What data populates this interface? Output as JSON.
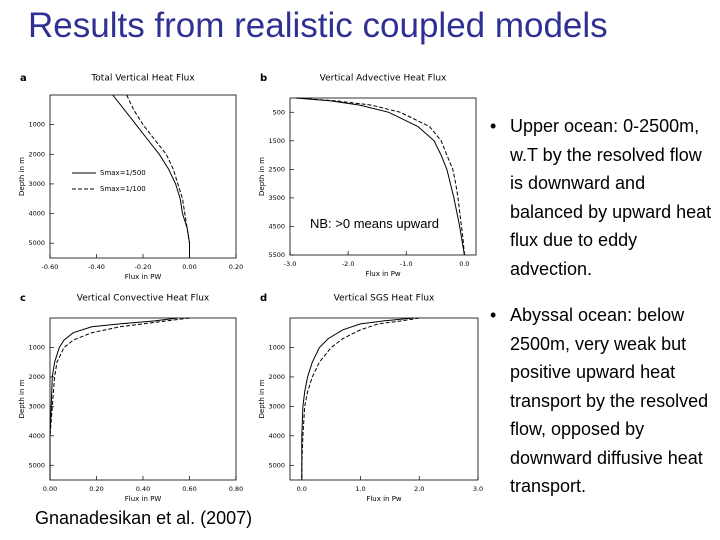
{
  "title": "Results from realistic coupled models",
  "note": "NB: >0 means upward",
  "citation": "Gnanadesikan et al. (2007)",
  "bullets": [
    "Upper ocean: 0-2500m, w.T by the resolved flow is downward and balanced by upward heat flux due to eddy advection.",
    "Abyssal ocean: below 2500m, very weak but positive upward heat transport by the resolved flow, opposed by downward diffusive heat transport."
  ],
  "chart_data": [
    {
      "type": "line",
      "panel": "a",
      "title": "Total Vertical Heat Flux",
      "x_label": "Flux in PW",
      "y_label": "Depth in m",
      "xlim": [
        -0.6,
        0.2
      ],
      "xticks": [
        {
          "value": -0.6,
          "label": "-0.60"
        },
        {
          "value": -0.4,
          "label": "-0.40"
        },
        {
          "value": -0.2,
          "label": "-0.20"
        },
        {
          "value": 0,
          "label": "0.00"
        },
        {
          "value": 0.2,
          "label": "0.20"
        }
      ],
      "ylim": [
        0,
        5500
      ],
      "yticks": [
        1000,
        2000,
        3000,
        4000,
        5000
      ],
      "legend": "left",
      "y": [
        0,
        500,
        1000,
        1500,
        2000,
        2500,
        3000,
        3500,
        4000,
        4500,
        5000,
        5500
      ],
      "series": [
        {
          "name": "Smax=1/500",
          "color": "#000000",
          "dash": false,
          "values": [
            -0.33,
            -0.28,
            -0.23,
            -0.18,
            -0.13,
            -0.09,
            -0.06,
            -0.04,
            -0.03,
            -0.01,
            0,
            0
          ]
        },
        {
          "name": "Smax=1/100",
          "color": "#000000",
          "dash": true,
          "values": [
            -0.27,
            -0.24,
            -0.2,
            -0.15,
            -0.1,
            -0.07,
            -0.05,
            -0.03,
            -0.02,
            -0.01,
            0,
            0
          ]
        }
      ]
    },
    {
      "type": "line",
      "panel": "b",
      "title": "Vertical Advective Heat Flux",
      "x_label": "Flux in Pw",
      "y_label": "Depth in m",
      "xlim": [
        -3.0,
        0.2
      ],
      "xticks": [
        {
          "value": -3,
          "label": "-3.0"
        },
        {
          "value": -2,
          "label": "-2.0"
        },
        {
          "value": -1,
          "label": "-1.0"
        },
        {
          "value": 0,
          "label": "0.0"
        }
      ],
      "ylim": [
        0,
        5500
      ],
      "yticks": [
        500,
        1500,
        2500,
        3500,
        4500,
        5500
      ],
      "y": [
        0,
        100,
        250,
        500,
        1000,
        1500,
        2000,
        2500,
        3000,
        3500,
        4000,
        4500,
        5000,
        5500
      ],
      "series": [
        {
          "color": "#000000",
          "dash": false,
          "values": [
            -2.9,
            -2.3,
            -1.8,
            -1.3,
            -0.8,
            -0.52,
            -0.4,
            -0.3,
            -0.24,
            -0.18,
            -0.13,
            -0.08,
            -0.04,
            0
          ]
        },
        {
          "color": "#000000",
          "dash": true,
          "values": [
            -2.9,
            -2.2,
            -1.6,
            -1.1,
            -0.6,
            -0.4,
            -0.3,
            -0.2,
            -0.15,
            -0.11,
            -0.08,
            -0.05,
            -0.02,
            0
          ]
        }
      ]
    },
    {
      "type": "line",
      "panel": "c",
      "title": "Vertical Convective Heat Flux",
      "x_label": "Flux in PW",
      "y_label": "Depth in m",
      "xlim": [
        0,
        0.8
      ],
      "xticks": [
        {
          "value": 0,
          "label": "0.00"
        },
        {
          "value": 0.2,
          "label": "0.20"
        },
        {
          "value": 0.4,
          "label": "0.40"
        },
        {
          "value": 0.6,
          "label": "0.60"
        },
        {
          "value": 0.8,
          "label": "0.80"
        }
      ],
      "ylim": [
        0,
        5500
      ],
      "yticks": [
        1000,
        2000,
        3000,
        4000,
        5000
      ],
      "y": [
        0,
        100,
        200,
        300,
        500,
        750,
        1000,
        1500,
        2000,
        3000,
        4000,
        5000,
        5500
      ],
      "series": [
        {
          "color": "#000000",
          "dash": false,
          "values": [
            0.55,
            0.45,
            0.3,
            0.18,
            0.1,
            0.06,
            0.04,
            0.02,
            0.01,
            0.005,
            0,
            0,
            0
          ]
        },
        {
          "color": "#000000",
          "dash": true,
          "values": [
            0.6,
            0.5,
            0.4,
            0.3,
            0.18,
            0.1,
            0.06,
            0.03,
            0.02,
            0.01,
            0,
            0,
            0
          ]
        }
      ]
    },
    {
      "type": "line",
      "panel": "d",
      "title": "Vertical SGS Heat Flux",
      "x_label": "Flux in Pw",
      "y_label": "Depth in m",
      "xlim": [
        -0.2,
        3.0
      ],
      "xticks": [
        {
          "value": 0,
          "label": "0.0"
        },
        {
          "value": 1,
          "label": "1.0"
        },
        {
          "value": 2,
          "label": "2.0"
        },
        {
          "value": 3,
          "label": "3.0"
        }
      ],
      "ylim": [
        0,
        5500
      ],
      "yticks": [
        1000,
        2000,
        3000,
        4000,
        5000
      ],
      "y": [
        0,
        100,
        200,
        400,
        700,
        1000,
        1500,
        2000,
        2500,
        3000,
        4000,
        5000,
        5500
      ],
      "series": [
        {
          "color": "#000000",
          "dash": false,
          "values": [
            1.9,
            1.4,
            1.0,
            0.7,
            0.45,
            0.3,
            0.18,
            0.1,
            0.05,
            0.02,
            0,
            0,
            0
          ]
        },
        {
          "color": "#000000",
          "dash": true,
          "values": [
            2.0,
            1.7,
            1.3,
            1.0,
            0.7,
            0.5,
            0.3,
            0.18,
            0.1,
            0.05,
            0.02,
            0,
            0
          ]
        }
      ]
    }
  ]
}
